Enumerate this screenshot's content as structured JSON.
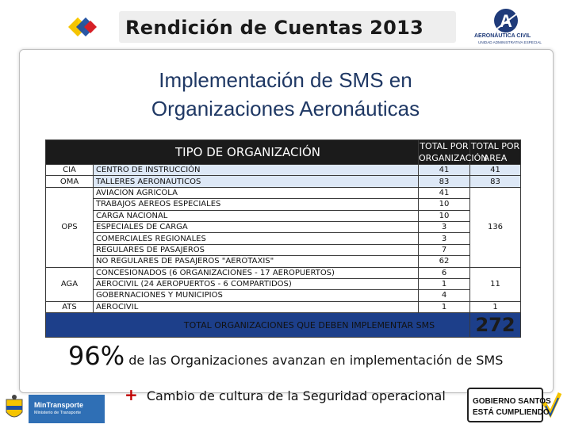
{
  "header": {
    "title": "Rendición de Cuentas 2013",
    "logo_left": "diamond-flag-logo",
    "logo_right": {
      "icon": "aerocivil-logo",
      "name": "AERONÁUTICA CIVIL",
      "subtitle": "UNIDAD ADMINISTRATIVA ESPECIAL"
    }
  },
  "slide": {
    "title_line1": "Implementación de SMS en",
    "title_line2": "Organizaciones Aeronáuticas"
  },
  "table": {
    "headers": {
      "type": "TIPO DE ORGANIZACIÓN",
      "total_org_line1": "TOTAL POR",
      "total_org_line2": "ORGANIZACIÓN",
      "total_area_line1": "TOTAL POR",
      "total_area_line2": "AREA"
    },
    "groups": [
      {
        "category": "CIA",
        "area_total": "41",
        "rows": [
          {
            "name": "CENTRO DE INSTRUCCIÓN",
            "total": "41"
          }
        ]
      },
      {
        "category": "OMA",
        "area_total": "83",
        "rows": [
          {
            "name": "TALLERES AERONAUTICOS",
            "total": "83"
          }
        ]
      },
      {
        "category": "OPS",
        "area_total": "136",
        "rows": [
          {
            "name": "AVIACION AGRICOLA",
            "total": "41"
          },
          {
            "name": "TRABAJOS AEREOS ESPECIALES",
            "total": "10"
          },
          {
            "name": "CARGA NACIONAL",
            "total": "10"
          },
          {
            "name": "ESPECIALES DE CARGA",
            "total": "3"
          },
          {
            "name": "COMERCIALES REGIONALES",
            "total": "3"
          },
          {
            "name": "REGULARES DE PASAJEROS",
            "total": "7"
          },
          {
            "name": "NO REGULARES DE PASAJEROS \"AEROTAXIS\"",
            "total": "62"
          }
        ]
      },
      {
        "category": "AGA",
        "area_total": "11",
        "rows": [
          {
            "name": "CONCESIONADOS (6 ORGANIZACIONES - 17 AEROPUERTOS)",
            "total": "6"
          },
          {
            "name": "AEROCIVIL  (24 AEROPUERTOS - 6 COMPARTIDOS)",
            "total": "1"
          },
          {
            "name": "GOBERNACIONES Y MUNICIPIOS",
            "total": "4"
          }
        ]
      },
      {
        "category": "ATS",
        "area_total": "1",
        "rows": [
          {
            "name": "AEROCIVIL",
            "total": "1"
          }
        ]
      }
    ],
    "total_label": "TOTAL ORGANIZACIONES QUE DEBEN IMPLEMENTAR SMS",
    "total_value": "272"
  },
  "summary": {
    "percent": "96%",
    "percent_text": "de las Organizaciones avanzan en implementación de SMS",
    "plus": "+",
    "culture_text": "Cambio de cultura de la Seguridad operacional"
  },
  "footer": {
    "ministry_name": "MinTransporte",
    "ministry_sub": "Ministerio de Transporte",
    "gov_line1": "GOBIERNO SANTOS",
    "gov_line2": "ESTÁ CUMPLIENDO"
  },
  "colors": {
    "title_blue": "#1f3864",
    "header_black": "#1b1b1b",
    "row_light_blue": "#dde8f6",
    "total_row_blue": "#1d3f8a",
    "plus_red": "#c00000",
    "ministry_blue": "#2f6fb5"
  }
}
